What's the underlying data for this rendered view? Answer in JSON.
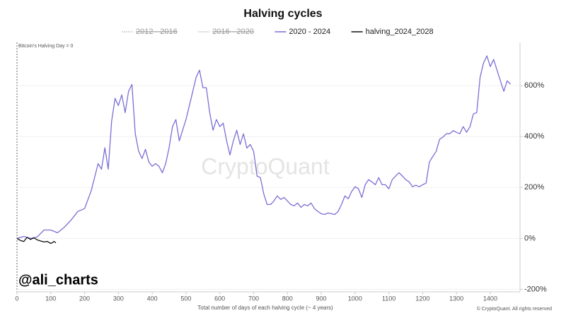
{
  "chart_data": {
    "type": "line",
    "title": "Halving cycles",
    "annotation": "Bitcoin's Halving Day = 0",
    "watermark": "CryptoQuant",
    "author": "@ali_charts",
    "x_label": "Total number of days of each halving cycle (~ 4 years)",
    "credit": "© CryptoQuant. All rights reserved",
    "xlim": [
      0,
      1488
    ],
    "xticks": [
      0,
      100,
      200,
      300,
      400,
      500,
      600,
      700,
      800,
      900,
      1000,
      1100,
      1200,
      1300,
      1400
    ],
    "ylim": [
      -210,
      770
    ],
    "yticks": [
      {
        "value": -200,
        "label": "-200%"
      },
      {
        "value": 0,
        "label": "0%"
      },
      {
        "value": 200,
        "label": "200%"
      },
      {
        "value": 400,
        "label": "400%"
      },
      {
        "value": 600,
        "label": "600%"
      }
    ],
    "grid": true,
    "series": [
      {
        "name": "2012 - 2016",
        "color": "#b0b0b0",
        "visible": false,
        "x": [],
        "values": []
      },
      {
        "name": "2016 - 2020",
        "color": "#b0b0b0",
        "visible": false,
        "x": [],
        "values": []
      },
      {
        "name": "2020 - 2024",
        "color": "#7b6fd6",
        "visible": true,
        "x": [
          0,
          20,
          40,
          60,
          80,
          100,
          120,
          140,
          160,
          180,
          200,
          220,
          240,
          250,
          260,
          270,
          280,
          290,
          300,
          310,
          320,
          330,
          340,
          350,
          360,
          370,
          380,
          390,
          400,
          410,
          420,
          430,
          440,
          450,
          460,
          470,
          480,
          490,
          500,
          510,
          520,
          530,
          540,
          550,
          560,
          570,
          580,
          590,
          600,
          610,
          620,
          630,
          640,
          650,
          660,
          670,
          680,
          690,
          700,
          710,
          720,
          730,
          740,
          750,
          760,
          770,
          780,
          790,
          800,
          810,
          820,
          830,
          840,
          850,
          860,
          870,
          880,
          890,
          900,
          910,
          920,
          930,
          940,
          950,
          960,
          970,
          980,
          990,
          1000,
          1010,
          1020,
          1030,
          1040,
          1050,
          1060,
          1070,
          1080,
          1090,
          1100,
          1110,
          1120,
          1130,
          1140,
          1150,
          1160,
          1170,
          1180,
          1190,
          1200,
          1210,
          1220,
          1230,
          1240,
          1250,
          1260,
          1270,
          1280,
          1290,
          1300,
          1310,
          1320,
          1330,
          1340,
          1350,
          1360,
          1370,
          1380,
          1390,
          1400,
          1410,
          1420,
          1430,
          1440,
          1450,
          1460
        ],
        "values": [
          0,
          8,
          0,
          6,
          33,
          33,
          22,
          44,
          72,
          106,
          117,
          189,
          294,
          272,
          356,
          272,
          461,
          550,
          522,
          564,
          494,
          578,
          605,
          411,
          342,
          314,
          350,
          300,
          283,
          294,
          283,
          258,
          294,
          356,
          439,
          467,
          383,
          425,
          467,
          522,
          578,
          633,
          661,
          592,
          592,
          494,
          425,
          467,
          439,
          453,
          383,
          328,
          383,
          425,
          369,
          411,
          355,
          369,
          342,
          245,
          239,
          175,
          133,
          133,
          147,
          167,
          153,
          161,
          147,
          133,
          128,
          139,
          122,
          133,
          128,
          139,
          117,
          106,
          97,
          94,
          100,
          97,
          94,
          106,
          133,
          167,
          156,
          184,
          203,
          195,
          161,
          211,
          231,
          222,
          211,
          239,
          211,
          211,
          195,
          231,
          245,
          258,
          245,
          231,
          222,
          203,
          209,
          203,
          211,
          217,
          300,
          322,
          342,
          389,
          398,
          411,
          411,
          423,
          417,
          411,
          439,
          417,
          439,
          489,
          494,
          633,
          689,
          717,
          675,
          703,
          661,
          619,
          578,
          619,
          606
        ]
      },
      {
        "name": "halving_2024_2028",
        "color": "#111111",
        "visible": true,
        "x": [
          0,
          10,
          20,
          30,
          40,
          50,
          60,
          70,
          80,
          90,
          100,
          110,
          115
        ],
        "values": [
          0,
          -8,
          -12,
          4,
          -4,
          2,
          -6,
          -10,
          -14,
          -12,
          -20,
          -12,
          -18
        ]
      }
    ]
  }
}
